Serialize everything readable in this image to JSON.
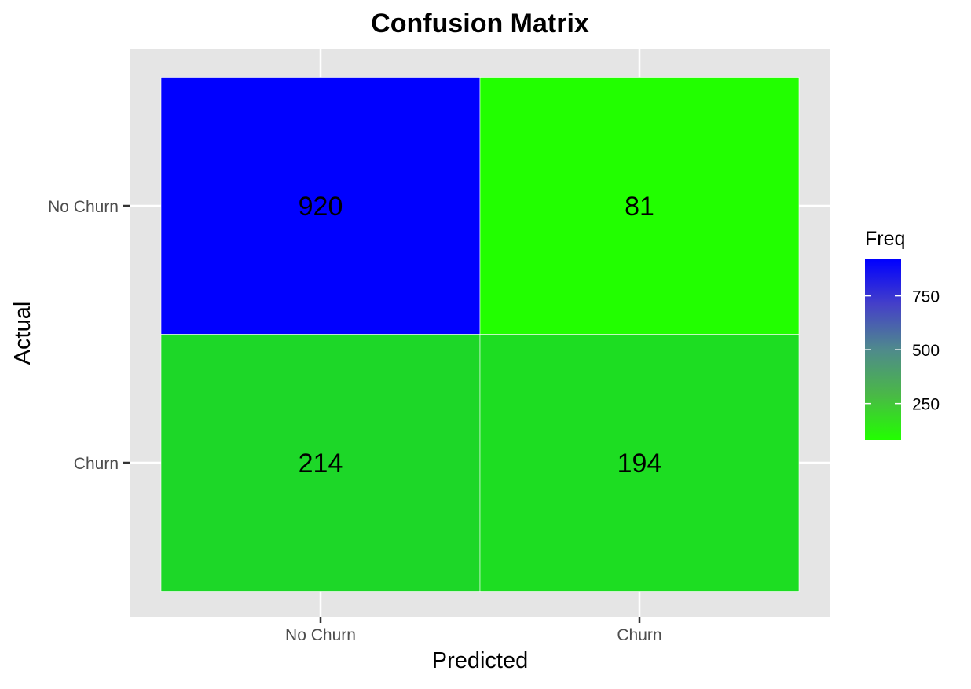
{
  "chart_data": {
    "type": "heatmap",
    "title": "Confusion Matrix",
    "xlabel": "Predicted",
    "ylabel": "Actual",
    "x_categories": [
      "No Churn",
      "Churn"
    ],
    "y_categories": [
      "No Churn",
      "Churn"
    ],
    "cells": [
      {
        "actual": "No Churn",
        "predicted": "No Churn",
        "value": 920,
        "label": "920"
      },
      {
        "actual": "No Churn",
        "predicted": "Churn",
        "value": 81,
        "label": "81"
      },
      {
        "actual": "Churn",
        "predicted": "No Churn",
        "value": 214,
        "label": "214"
      },
      {
        "actual": "Churn",
        "predicted": "Churn",
        "value": 194,
        "label": "194"
      }
    ],
    "legend": {
      "title": "Freq",
      "placement": "right",
      "ticks": [
        250,
        500,
        750
      ],
      "tick_labels": [
        "250",
        "500",
        "750"
      ]
    },
    "color_scale": {
      "low": "#22ff00",
      "high": "#0000ff",
      "low_value": 81,
      "high_value": 920
    },
    "panel_background": "#e5e5e5",
    "grid_color": "#ffffff",
    "grid": true
  }
}
